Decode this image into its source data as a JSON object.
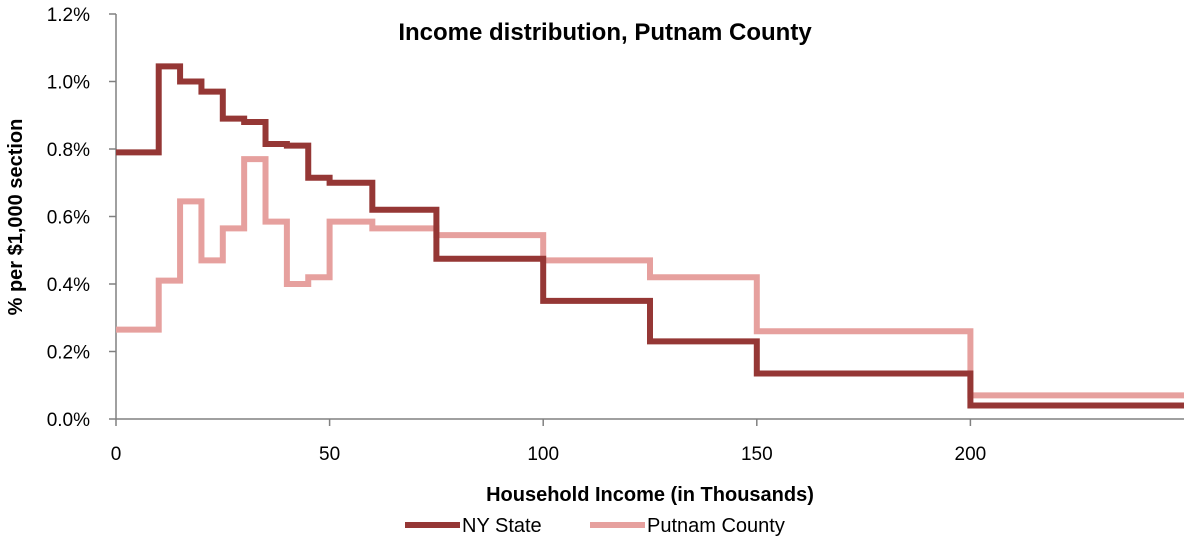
{
  "chart_data": {
    "type": "line",
    "step": true,
    "title": "Income distribution, Putnam County",
    "xlabel": "Household  Income  (in Thousands)",
    "ylabel": "% per $1,000 section",
    "xlim": [
      0,
      250
    ],
    "ylim": [
      0,
      0.012
    ],
    "x_ticks": [
      0,
      50,
      100,
      150,
      200
    ],
    "x_tick_labels": [
      "0",
      "50",
      "100",
      "150",
      "200"
    ],
    "y_ticks": [
      0,
      0.002,
      0.004,
      0.006,
      0.008,
      0.01,
      0.012
    ],
    "y_tick_labels": [
      "0.0%",
      "0.2%",
      "0.4%",
      "0.6%",
      "0.8%",
      "1.0%",
      "1.2%"
    ],
    "grid": false,
    "legend_position": "bottom",
    "series": [
      {
        "name": "NY State",
        "color": "#953735",
        "bins": [
          0,
          10,
          15,
          20,
          25,
          30,
          35,
          40,
          45,
          50,
          60,
          75,
          100,
          125,
          150,
          200,
          250
        ],
        "values": [
          0.0079,
          0.01045,
          0.01,
          0.0097,
          0.0089,
          0.0088,
          0.00815,
          0.0081,
          0.00715,
          0.007,
          0.0062,
          0.00475,
          0.0035,
          0.0023,
          0.00135,
          0.0004
        ]
      },
      {
        "name": "Putnam County",
        "color": "#e6a09e",
        "bins": [
          0,
          10,
          15,
          20,
          25,
          30,
          35,
          40,
          45,
          50,
          60,
          75,
          100,
          125,
          150,
          200,
          250
        ],
        "values": [
          0.00265,
          0.0041,
          0.00645,
          0.0047,
          0.00565,
          0.0077,
          0.00585,
          0.004,
          0.0042,
          0.00585,
          0.00565,
          0.00545,
          0.0047,
          0.0042,
          0.0026,
          0.0007
        ]
      }
    ]
  }
}
